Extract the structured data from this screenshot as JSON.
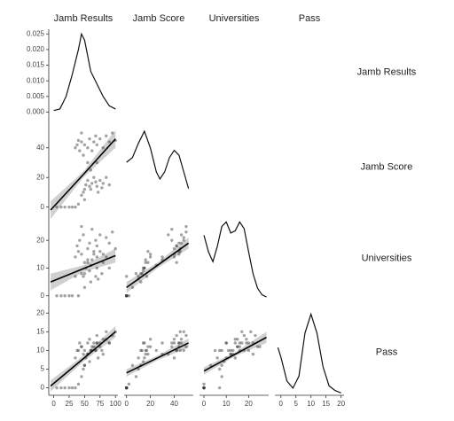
{
  "chart_data": {
    "type": "scatter-matrix",
    "variables": [
      {
        "name": "Jamb Results",
        "lim": [
          -8,
          104
        ],
        "ticks": [
          0,
          25,
          50,
          75,
          100
        ],
        "values": [
          5,
          12,
          18,
          25,
          30,
          35,
          40,
          45,
          48,
          50,
          52,
          55,
          58,
          60,
          62,
          65,
          68,
          70,
          72,
          75,
          78,
          80,
          85,
          90,
          35,
          38,
          40,
          42,
          45,
          48,
          50,
          55,
          58,
          62,
          65,
          68,
          70,
          75,
          80,
          85,
          90,
          95,
          100,
          55,
          60,
          45,
          70,
          50
        ]
      },
      {
        "name": "Jamb Score",
        "lim": [
          -2,
          56
        ],
        "ticks": [
          0,
          20,
          40
        ],
        "values": [
          0,
          0,
          0,
          0,
          0,
          0,
          2,
          8,
          10,
          12,
          15,
          18,
          14,
          12,
          16,
          20,
          17,
          14,
          10,
          18,
          13,
          16,
          20,
          15,
          40,
          42,
          45,
          38,
          44,
          35,
          42,
          40,
          46,
          38,
          44,
          48,
          42,
          46,
          40,
          48,
          44,
          50,
          45,
          30,
          25,
          50,
          30,
          5
        ]
      },
      {
        "name": "Universities",
        "lim": [
          -2,
          29
        ],
        "ticks": [
          0,
          10,
          20
        ],
        "values": [
          0,
          0,
          0,
          0,
          0,
          7,
          0,
          8,
          7,
          8,
          10,
          12,
          9,
          5,
          13,
          15,
          7,
          10,
          6,
          16,
          8,
          12,
          14,
          10,
          14,
          18,
          16,
          20,
          15,
          22,
          12,
          17,
          19,
          24,
          16,
          20,
          18,
          22,
          15,
          21,
          19,
          23,
          17,
          13,
          11,
          25,
          14,
          3
        ]
      },
      {
        "name": "Pass",
        "lim": [
          -2,
          21
        ],
        "ticks": [
          0,
          5,
          10,
          15,
          20
        ],
        "values": [
          0,
          0,
          0,
          0,
          0,
          0,
          1,
          3,
          5,
          6,
          8,
          9,
          7,
          10,
          10,
          11,
          10,
          12,
          8,
          11,
          10,
          9,
          13,
          12,
          8,
          10,
          10,
          12,
          11,
          9,
          10,
          12,
          13,
          11,
          12,
          10,
          14,
          12,
          13,
          15,
          12,
          14,
          15,
          9,
          10,
          11,
          12,
          6
        ]
      }
    ],
    "densities": [
      {
        "x": [
          0,
          10,
          20,
          30,
          40,
          45,
          50,
          60,
          70,
          80,
          90,
          100
        ],
        "y": [
          0.0005,
          0.001,
          0.005,
          0.012,
          0.02,
          0.025,
          0.023,
          0.013,
          0.009,
          0.005,
          0.002,
          0.001
        ],
        "ylim": [
          -0.001,
          0.0265
        ],
        "yticks": [
          {
            "value": 0,
            "label": "0.000"
          },
          {
            "value": 0.005,
            "label": "0.005"
          },
          {
            "value": 0.01,
            "label": "0.010"
          },
          {
            "value": 0.015,
            "label": "0.015"
          },
          {
            "value": 0.02,
            "label": "0.020"
          },
          {
            "value": 0.025,
            "label": "0.025"
          }
        ]
      },
      {
        "x": [
          0,
          5,
          10,
          15,
          20,
          25,
          28,
          32,
          36,
          40,
          44,
          48,
          52
        ],
        "y": [
          0.02,
          0.022,
          0.028,
          0.033,
          0.026,
          0.016,
          0.013,
          0.016,
          0.022,
          0.025,
          0.023,
          0.016,
          0.009
        ],
        "ylim": [
          0,
          0.036
        ]
      },
      {
        "x": [
          0,
          2,
          4,
          6,
          8,
          10,
          12,
          14,
          16,
          18,
          20,
          22,
          24,
          26,
          28
        ],
        "y": [
          0.06,
          0.045,
          0.036,
          0.05,
          0.068,
          0.072,
          0.062,
          0.064,
          0.072,
          0.066,
          0.045,
          0.025,
          0.012,
          0.006,
          0.004
        ],
        "ylim": [
          0,
          0.078
        ]
      },
      {
        "x": [
          -1,
          0,
          2,
          4,
          6,
          8,
          10,
          12,
          14,
          16,
          18,
          20
        ],
        "y": [
          0.1,
          0.08,
          0.03,
          0.015,
          0.04,
          0.13,
          0.17,
          0.13,
          0.06,
          0.02,
          0.01,
          0.005
        ],
        "ylim": [
          0,
          0.18
        ]
      }
    ],
    "fits": [
      [
        {
          "x": [
            -5,
            48,
            100
          ],
          "y": [
            -2,
            22,
            46
          ],
          "lower": [
            -8,
            20,
            40
          ],
          "upper": [
            4,
            24,
            52
          ]
        }
      ],
      [
        {
          "x": [
            -5,
            48,
            100
          ],
          "y": [
            5,
            9.8,
            14.5
          ],
          "lower": [
            2,
            8.6,
            12
          ],
          "upper": [
            8,
            11,
            17
          ]
        },
        {
          "x": [
            0,
            26,
            52
          ],
          "y": [
            3,
            11,
            19
          ],
          "lower": [
            1,
            10,
            17
          ],
          "upper": [
            5,
            12,
            21
          ]
        }
      ],
      [
        {
          "x": [
            -5,
            48,
            100
          ],
          "y": [
            0.5,
            7.8,
            15
          ],
          "lower": [
            -1,
            7,
            13.5
          ],
          "upper": [
            2,
            8.6,
            16.5
          ]
        },
        {
          "x": [
            0,
            26,
            52
          ],
          "y": [
            4,
            8,
            12
          ],
          "lower": [
            3,
            7.4,
            10.8
          ],
          "upper": [
            5,
            8.6,
            13.2
          ]
        },
        {
          "x": [
            0,
            14,
            28
          ],
          "y": [
            4.5,
            9,
            13.5
          ],
          "lower": [
            3.5,
            8.5,
            12
          ],
          "upper": [
            5.5,
            9.5,
            15
          ]
        }
      ]
    ]
  }
}
